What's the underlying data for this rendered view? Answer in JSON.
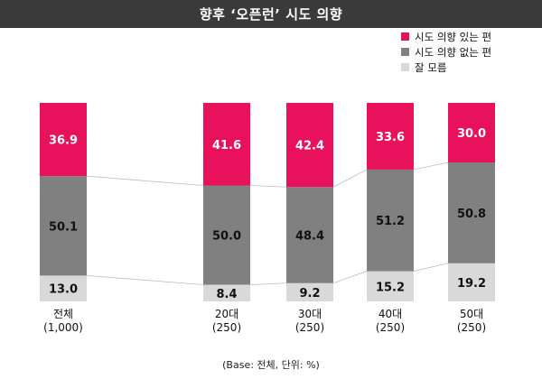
{
  "chart_data": {
    "type": "bar",
    "stacked": true,
    "title": "향후 ‘오픈런’ 시도 의향",
    "categories": [
      {
        "name": "전체",
        "n": "(1,000)"
      },
      {
        "name": "20대",
        "n": "(250)"
      },
      {
        "name": "30대",
        "n": "(250)"
      },
      {
        "name": "40대",
        "n": "(250)"
      },
      {
        "name": "50대",
        "n": "(250)"
      }
    ],
    "series": [
      {
        "name": "잘 모름",
        "color": "#d9d9d9",
        "text_color": "#111111",
        "values": [
          13.0,
          8.4,
          9.2,
          15.2,
          19.2
        ]
      },
      {
        "name": "시도 의향 없는 편",
        "color": "#808080",
        "text_color": "#111111",
        "values": [
          50.1,
          50.0,
          48.4,
          51.2,
          50.8
        ]
      },
      {
        "name": "시도 의향 있는 편",
        "color": "#e8115b",
        "text_color": "#ffffff",
        "values": [
          36.9,
          41.6,
          42.4,
          33.6,
          30.0
        ]
      }
    ],
    "legend_order": [
      "시도 의향 있는 편",
      "시도 의향 없는 편",
      "잘 모름"
    ],
    "legend_position": "top-right",
    "ylim": [
      0,
      100
    ],
    "grid": false,
    "connector_lines": true,
    "note": "(Base: 전체, 단위: %)"
  }
}
